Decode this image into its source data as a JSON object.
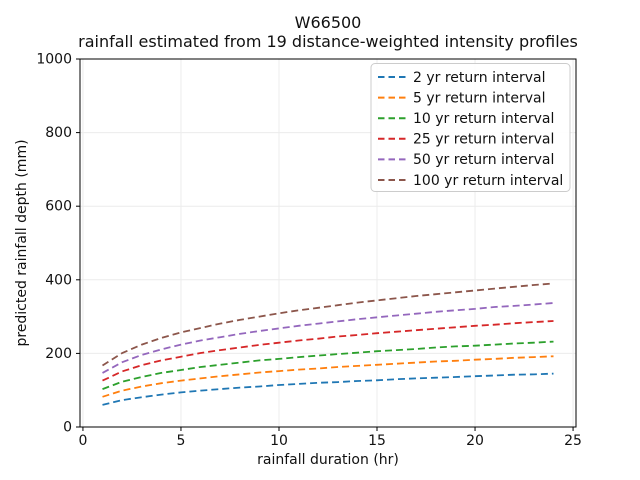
{
  "window": {
    "background": "#ffffff"
  },
  "chart_data": {
    "type": "line",
    "title": "W66500",
    "subtitle": "rainfall estimated from 19 distance-weighted intensity profiles",
    "xlabel": "rainfall duration (hr)",
    "ylabel": "predicted rainfall depth (mm)",
    "xlim": [
      -0.15,
      25.15
    ],
    "ylim": [
      0,
      1000
    ],
    "xticks": [
      0,
      5,
      10,
      15,
      20,
      25
    ],
    "yticks": [
      0,
      200,
      400,
      600,
      800,
      1000
    ],
    "grid": true,
    "grid_color": "#ececec",
    "axis_color": "#000000",
    "tick_label_color": "#111111",
    "line_style": "dashed",
    "line_width": 1.8,
    "legend": {
      "position": "upper right",
      "border_color": "#cccccc",
      "background": "#ffffff"
    },
    "x": [
      1,
      2,
      3,
      4,
      5,
      6,
      7,
      8,
      9,
      10,
      11,
      12,
      13,
      14,
      15,
      16,
      17,
      18,
      19,
      20,
      21,
      22,
      23,
      24
    ],
    "series": [
      {
        "name": "2 yr return interval",
        "color": "#1f77b4",
        "values": [
          60,
          73,
          81,
          88,
          94,
          99,
          103,
          107,
          110,
          114,
          117,
          120,
          122,
          125,
          127,
          130,
          132,
          134,
          136,
          138,
          140,
          142,
          143,
          145
        ]
      },
      {
        "name": "5 yr return interval",
        "color": "#ff7f0e",
        "values": [
          82,
          99,
          110,
          119,
          126,
          132,
          138,
          143,
          148,
          152,
          156,
          159,
          163,
          166,
          169,
          172,
          175,
          178,
          180,
          183,
          185,
          188,
          190,
          192
        ]
      },
      {
        "name": "10 yr return interval",
        "color": "#2ca02c",
        "values": [
          103,
          123,
          136,
          147,
          155,
          163,
          169,
          175,
          181,
          185,
          190,
          194,
          198,
          202,
          206,
          209,
          212,
          216,
          219,
          221,
          224,
          227,
          229,
          232
        ]
      },
      {
        "name": "25 yr return interval",
        "color": "#d62728",
        "values": [
          126,
          151,
          168,
          181,
          191,
          201,
          209,
          216,
          223,
          229,
          235,
          240,
          246,
          250,
          255,
          259,
          263,
          267,
          271,
          275,
          278,
          282,
          285,
          288
        ]
      },
      {
        "name": "50 yr return interval",
        "color": "#9467bd",
        "values": [
          147,
          176,
          196,
          211,
          224,
          235,
          244,
          253,
          261,
          268,
          275,
          281,
          287,
          293,
          298,
          303,
          308,
          313,
          317,
          321,
          326,
          329,
          333,
          337
        ]
      },
      {
        "name": "100 yr return interval",
        "color": "#8c564b",
        "values": [
          167,
          201,
          224,
          242,
          257,
          269,
          281,
          291,
          300,
          309,
          317,
          324,
          331,
          338,
          344,
          350,
          356,
          361,
          366,
          371,
          376,
          381,
          386,
          390
        ]
      }
    ]
  }
}
